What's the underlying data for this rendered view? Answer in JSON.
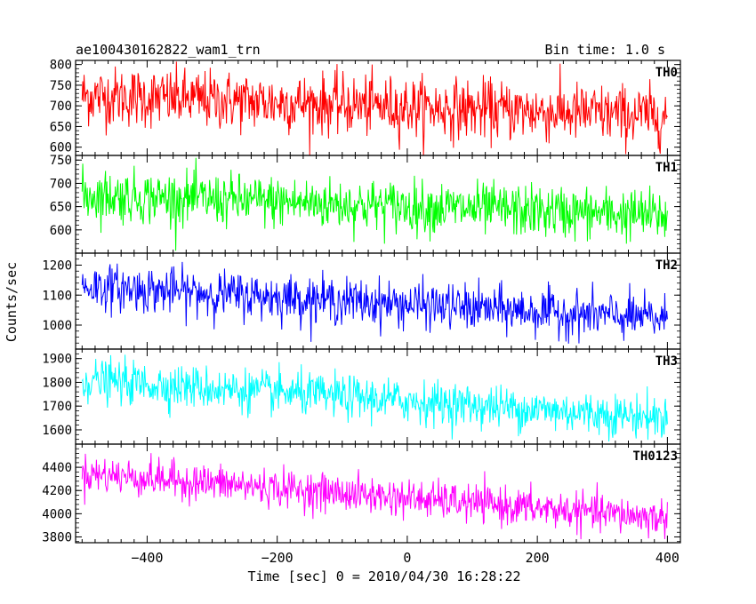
{
  "chart_data": {
    "type": "line",
    "title": "ae100430162822_wam1_trn",
    "subtitle": "Bin time: 1.0 s",
    "xlabel": "Time [sec] 0 = 2010/04/30 16:28:22",
    "ylabel": "Counts/sec",
    "xlim": [
      -510,
      420
    ],
    "x_ticks": [
      -400,
      -200,
      0,
      200,
      400
    ],
    "x_tick_labels": [
      "−400",
      "−200",
      "0",
      "200",
      "400"
    ],
    "x_start": -500,
    "x_end": 400,
    "bin_time": 1.0,
    "grid": false,
    "panels": [
      {
        "series_label": "TH0",
        "color": "#ff0000",
        "ylim": [
          580,
          810
        ],
        "y_ticks": [
          600,
          650,
          700,
          750,
          800
        ],
        "start_mean": 725,
        "end_mean": 675,
        "noise_sd": 36
      },
      {
        "series_label": "TH1",
        "color": "#00ff00",
        "ylim": [
          550,
          760
        ],
        "y_ticks": [
          600,
          650,
          700,
          750
        ],
        "start_mean": 675,
        "end_mean": 630,
        "noise_sd": 28
      },
      {
        "series_label": "TH2",
        "color": "#0000ff",
        "ylim": [
          920,
          1240
        ],
        "y_ticks": [
          1000,
          1100,
          1200
        ],
        "start_mean": 1130,
        "end_mean": 1020,
        "noise_sd": 38
      },
      {
        "series_label": "TH3",
        "color": "#00ffff",
        "ylim": [
          1540,
          1940
        ],
        "y_ticks": [
          1600,
          1700,
          1800,
          1900
        ],
        "start_mean": 1810,
        "end_mean": 1650,
        "noise_sd": 45
      },
      {
        "series_label": "TH0123",
        "color": "#ff00ff",
        "ylim": [
          3750,
          4600
        ],
        "y_ticks": [
          3800,
          4000,
          4200,
          4400
        ],
        "start_mean": 4350,
        "end_mean": 3960,
        "noise_sd": 80
      }
    ]
  }
}
